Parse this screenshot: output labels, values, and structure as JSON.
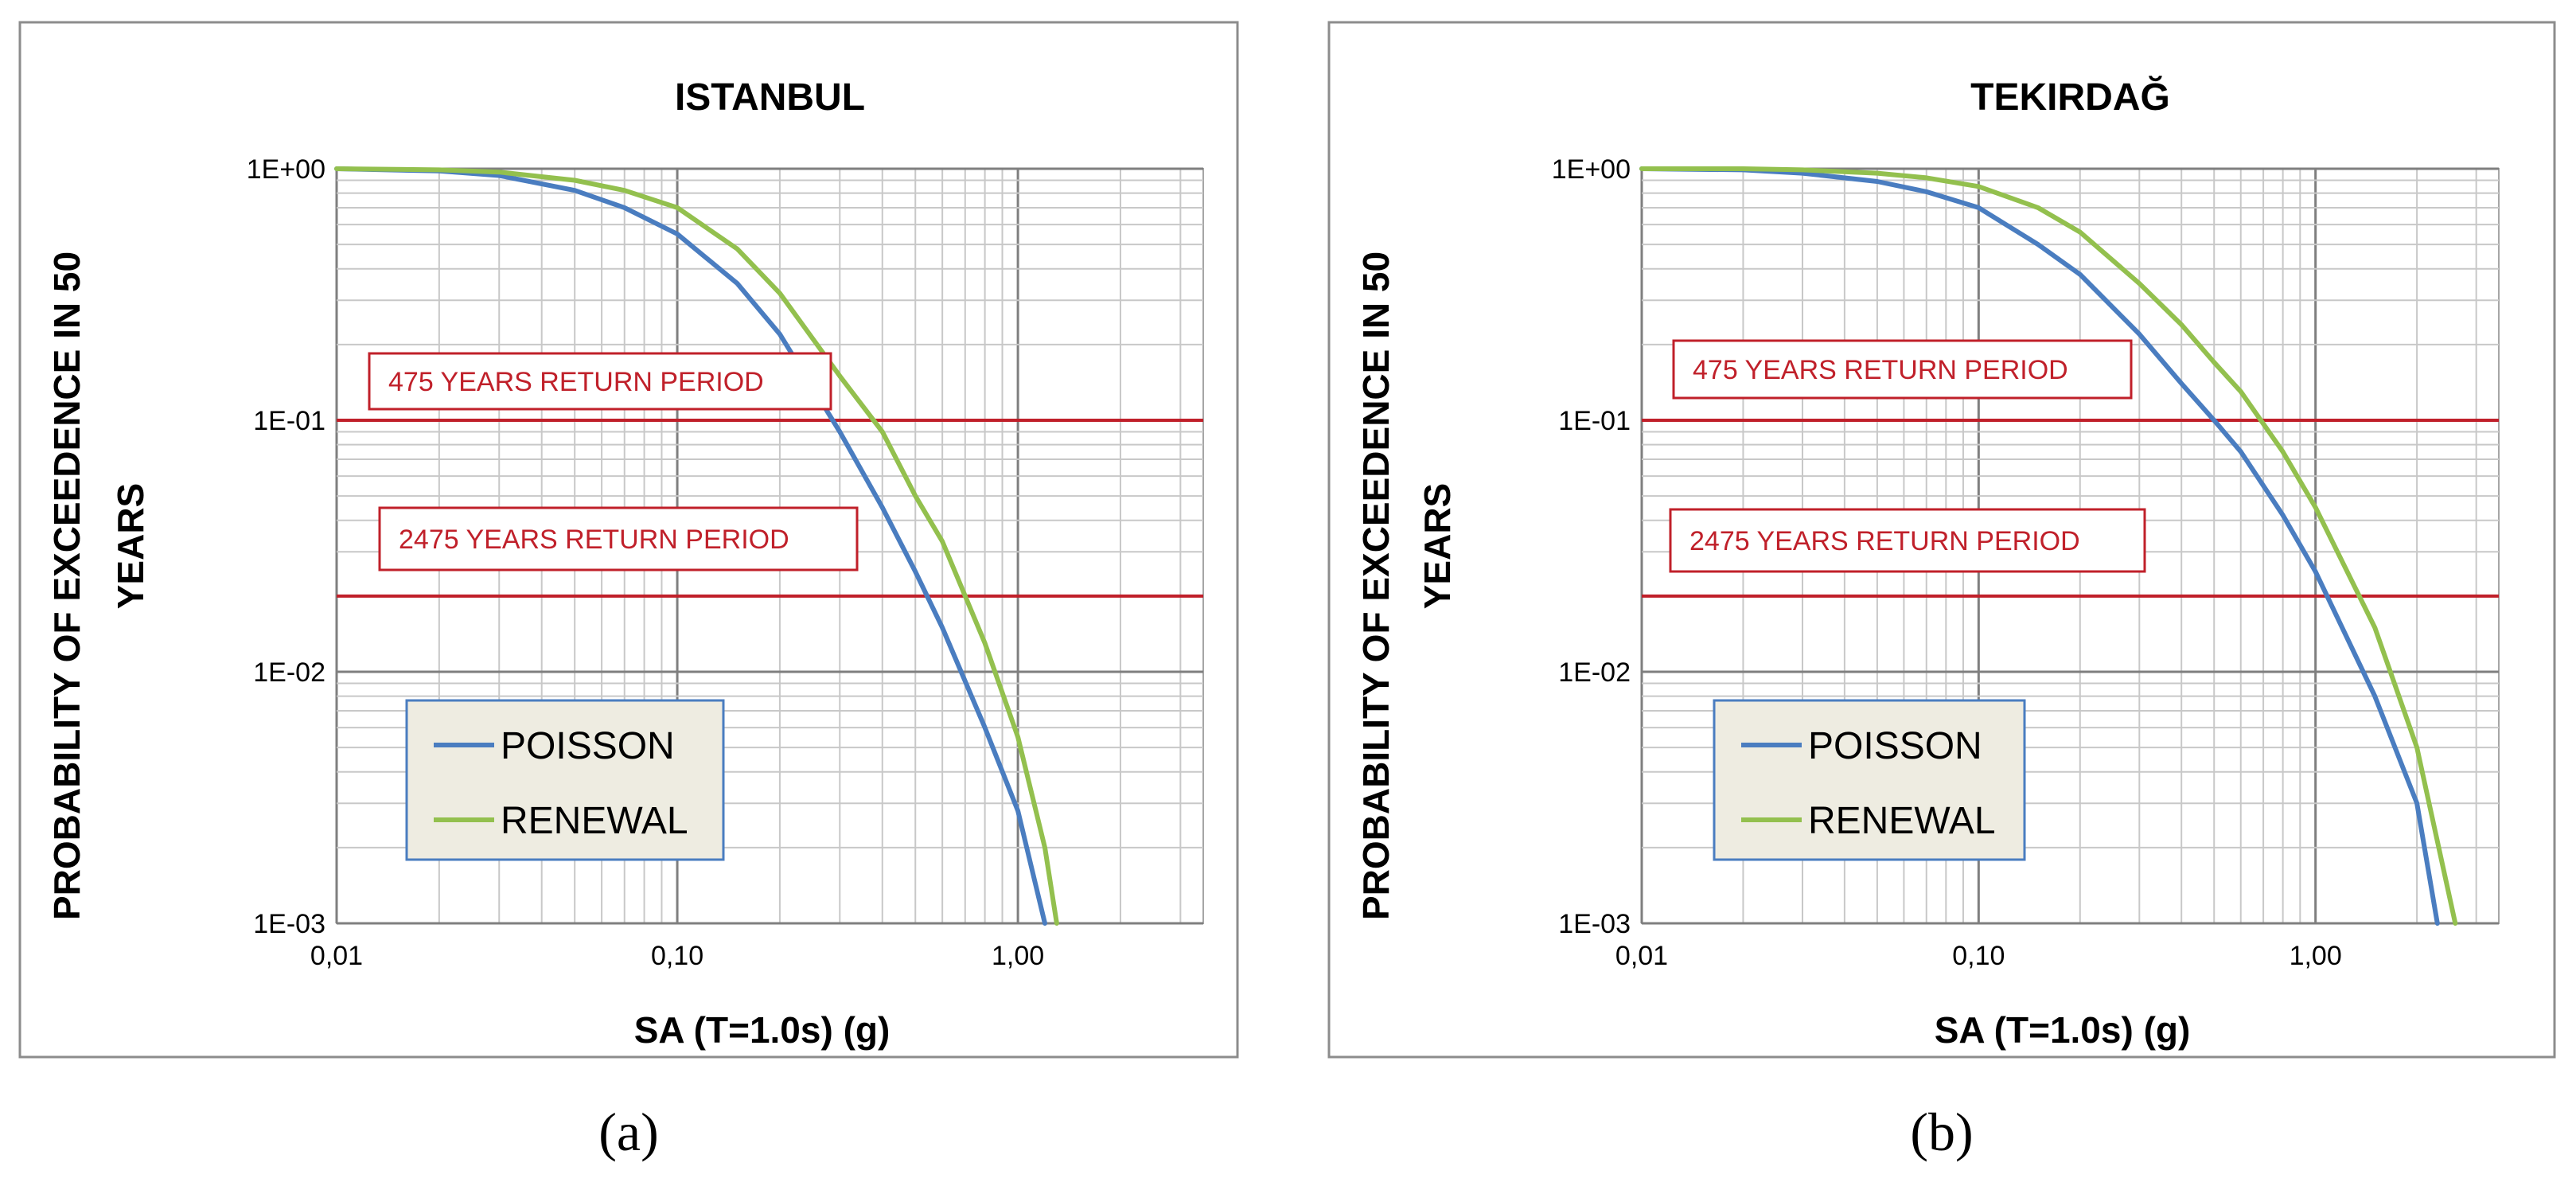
{
  "colors": {
    "poisson": "#4a7dc0",
    "renewal": "#93c04e",
    "reference": "#c0202a",
    "grid_major": "#7f7f7f",
    "grid_minor": "#c8c8c8",
    "legend_bg": "#eeece1",
    "legend_border": "#4a7dc0",
    "panel_border": "#8c8c8c"
  },
  "chart_data": [
    {
      "type": "line",
      "panel_label": "(a)",
      "title": "ISTANBUL",
      "xlabel": "SA (T=1.0s)  (g)",
      "ylabel_lines": [
        "PROBABILITY OF EXCEEDENCE IN 50",
        "YEARS"
      ],
      "x_scale": "log",
      "y_scale": "log",
      "xlim": [
        0.01,
        3.5
      ],
      "ylim": [
        0.001,
        1
      ],
      "x_ticks": [
        {
          "value": 0.01,
          "label": "0,01"
        },
        {
          "value": 0.1,
          "label": "0,10"
        },
        {
          "value": 1,
          "label": "1,00"
        }
      ],
      "y_ticks": [
        {
          "value": 1,
          "label": "1E+00"
        },
        {
          "value": 0.1,
          "label": "1E-01"
        },
        {
          "value": 0.01,
          "label": "1E-02"
        },
        {
          "value": 0.001,
          "label": "1E-03"
        }
      ],
      "grid": true,
      "legend_position": "bottom-left",
      "series": [
        {
          "name": "POISSON",
          "x": [
            0.01,
            0.02,
            0.03,
            0.05,
            0.07,
            0.1,
            0.15,
            0.2,
            0.3,
            0.4,
            0.5,
            0.6,
            0.8,
            1.0,
            1.2
          ],
          "y": [
            1.0,
            0.98,
            0.94,
            0.82,
            0.7,
            0.55,
            0.35,
            0.22,
            0.09,
            0.045,
            0.025,
            0.015,
            0.006,
            0.0028,
            0.001
          ]
        },
        {
          "name": "RENEWAL",
          "x": [
            0.01,
            0.02,
            0.03,
            0.05,
            0.07,
            0.1,
            0.15,
            0.2,
            0.3,
            0.4,
            0.5,
            0.6,
            0.8,
            1.0,
            1.2,
            1.3
          ],
          "y": [
            1.0,
            0.99,
            0.97,
            0.9,
            0.82,
            0.7,
            0.48,
            0.32,
            0.15,
            0.09,
            0.05,
            0.033,
            0.013,
            0.0055,
            0.002,
            0.001
          ]
        }
      ],
      "reference_lines": [
        {
          "label": "475 YEARS RETURN PERIOD",
          "y": 0.1
        },
        {
          "label": "2475 YEARS RETURN PERIOD",
          "y": 0.02
        }
      ]
    },
    {
      "type": "line",
      "panel_label": "(b)",
      "title": "TEKIRDAĞ",
      "xlabel": "SA (T=1.0s)  (g)",
      "ylabel_lines": [
        "PROBABILITY OF EXCEEDENCE IN 50",
        "YEARS"
      ],
      "x_scale": "log",
      "y_scale": "log",
      "xlim": [
        0.01,
        3.5
      ],
      "ylim": [
        0.001,
        1
      ],
      "x_ticks": [
        {
          "value": 0.01,
          "label": "0,01"
        },
        {
          "value": 0.1,
          "label": "0,10"
        },
        {
          "value": 1,
          "label": "1,00"
        }
      ],
      "y_ticks": [
        {
          "value": 1,
          "label": "1E+00"
        },
        {
          "value": 0.1,
          "label": "1E-01"
        },
        {
          "value": 0.01,
          "label": "1E-02"
        },
        {
          "value": 0.001,
          "label": "1E-03"
        }
      ],
      "grid": true,
      "legend_position": "bottom-left",
      "series": [
        {
          "name": "POISSON",
          "x": [
            0.01,
            0.02,
            0.03,
            0.05,
            0.07,
            0.1,
            0.15,
            0.2,
            0.3,
            0.4,
            0.5,
            0.6,
            0.8,
            1.0,
            1.5,
            2.0,
            2.3
          ],
          "y": [
            1.0,
            0.99,
            0.96,
            0.89,
            0.81,
            0.7,
            0.5,
            0.38,
            0.22,
            0.14,
            0.1,
            0.075,
            0.042,
            0.025,
            0.008,
            0.003,
            0.001
          ]
        },
        {
          "name": "RENEWAL",
          "x": [
            0.01,
            0.02,
            0.03,
            0.05,
            0.07,
            0.1,
            0.15,
            0.2,
            0.3,
            0.4,
            0.5,
            0.6,
            0.8,
            1.0,
            1.5,
            2.0,
            2.6
          ],
          "y": [
            1.0,
            1.0,
            0.99,
            0.96,
            0.92,
            0.85,
            0.7,
            0.56,
            0.35,
            0.24,
            0.17,
            0.13,
            0.075,
            0.045,
            0.015,
            0.005,
            0.001
          ]
        }
      ],
      "reference_lines": [
        {
          "label": "475 YEARS RETURN PERIOD",
          "y": 0.1
        },
        {
          "label": "2475 YEARS RETURN PERIOD",
          "y": 0.02
        }
      ]
    }
  ]
}
